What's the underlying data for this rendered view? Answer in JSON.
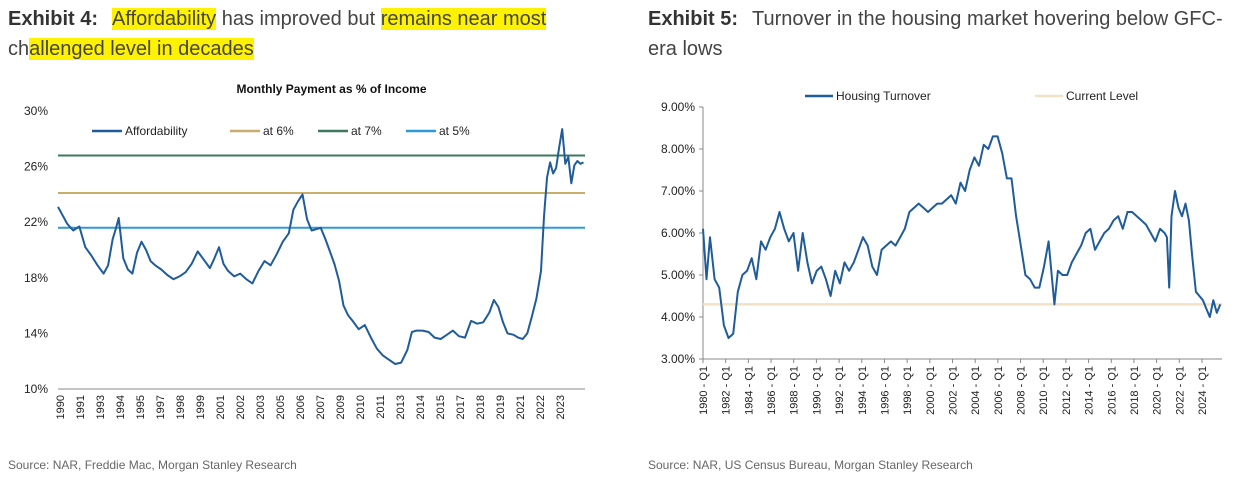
{
  "exhibit4": {
    "label": "Exhibit 4:",
    "title_parts": [
      {
        "text": "Affordability",
        "hl": true
      },
      {
        "text": " has improved but ",
        "hl": false
      },
      {
        "text": "remains near most",
        "hl": true
      },
      {
        "text": " ch",
        "hl": false
      },
      {
        "text": "allenged level in decades",
        "hl": true
      }
    ],
    "source": "Source: NAR, Freddie Mac, Morgan Stanley Research"
  },
  "exhibit5": {
    "label": "Exhibit 5:",
    "title": "Turnover in the housing market hovering below GFC-era lows",
    "source": "Source: NAR, US Census Bureau, Morgan Stanley Research"
  },
  "chart_data": [
    {
      "type": "line",
      "title": "Monthly Payment as % of Income",
      "xlabel": "",
      "ylabel": "",
      "xlim": [
        1990,
        2024.7
      ],
      "ylim": [
        10,
        30
      ],
      "y_ticks": [
        "10%",
        "14%",
        "18%",
        "22%",
        "26%",
        "30%"
      ],
      "x_ticks": [
        "1990",
        "1991",
        "1993",
        "1994",
        "1995",
        "1997",
        "1998",
        "1999",
        "2001",
        "2002",
        "2003",
        "2005",
        "2006",
        "2007",
        "2009",
        "2010",
        "2011",
        "2013",
        "2014",
        "2015",
        "2017",
        "2018",
        "2019",
        "2021",
        "2022",
        "2023"
      ],
      "legend_position": "top",
      "grid": false,
      "colors": {
        "Affordability": "#1f5c99",
        "at 6%": "#c8ad6b",
        "at 7%": "#3d7a5c",
        "at 5%": "#2e9ad6"
      },
      "series": [
        {
          "name": "Affordability",
          "x": [
            1990,
            1990.3,
            1990.6,
            1991,
            1991.4,
            1991.8,
            1992.2,
            1992.6,
            1993,
            1993.3,
            1993.6,
            1993.8,
            1994,
            1994.3,
            1994.6,
            1994.9,
            1995.2,
            1995.5,
            1995.8,
            1996.1,
            1996.4,
            1996.8,
            1997.2,
            1997.6,
            1998,
            1998.4,
            1998.8,
            1999.2,
            1999.6,
            2000,
            2000.3,
            2000.6,
            2000.9,
            2001.2,
            2001.6,
            2002,
            2002.4,
            2002.8,
            2003.2,
            2003.6,
            2004,
            2004.4,
            2004.8,
            2005.2,
            2005.5,
            2005.8,
            2006.1,
            2006.4,
            2006.7,
            2007,
            2007.3,
            2007.6,
            2007.9,
            2008.2,
            2008.5,
            2008.8,
            2009.1,
            2009.4,
            2009.8,
            2010.2,
            2010.6,
            2011,
            2011.4,
            2011.8,
            2012.2,
            2012.6,
            2013,
            2013.3,
            2013.6,
            2014,
            2014.4,
            2014.8,
            2015.2,
            2015.6,
            2016,
            2016.4,
            2016.8,
            2017.2,
            2017.6,
            2018,
            2018.4,
            2018.7,
            2019,
            2019.3,
            2019.6,
            2020,
            2020.3,
            2020.6,
            2020.9,
            2021.2,
            2021.5,
            2021.8,
            2022,
            2022.2,
            2022.4,
            2022.6,
            2022.8,
            2023,
            2023.2,
            2023.4,
            2023.6,
            2023.8,
            2024,
            2024.2,
            2024.4,
            2024.6
          ],
          "y": [
            23.1,
            22.5,
            21.9,
            21.4,
            21.7,
            20.2,
            19.6,
            18.9,
            18.3,
            18.9,
            20.8,
            21.5,
            22.3,
            19.4,
            18.6,
            18.3,
            19.8,
            20.6,
            20.0,
            19.2,
            18.9,
            18.6,
            18.2,
            17.9,
            18.1,
            18.4,
            19.0,
            19.9,
            19.3,
            18.7,
            19.4,
            20.2,
            19.0,
            18.5,
            18.1,
            18.3,
            17.9,
            17.6,
            18.5,
            19.2,
            18.9,
            19.7,
            20.6,
            21.2,
            22.9,
            23.5,
            24.0,
            22.2,
            21.4,
            21.5,
            21.6,
            20.8,
            19.9,
            19.0,
            17.8,
            16.0,
            15.3,
            14.9,
            14.3,
            14.6,
            13.7,
            12.9,
            12.4,
            12.1,
            11.8,
            11.9,
            12.8,
            14.1,
            14.2,
            14.2,
            14.1,
            13.7,
            13.6,
            13.9,
            14.2,
            13.8,
            13.7,
            14.9,
            14.7,
            14.8,
            15.5,
            16.4,
            15.9,
            14.8,
            14.0,
            13.9,
            13.7,
            13.6,
            14.0,
            15.2,
            16.5,
            18.5,
            22.4,
            25.2,
            26.3,
            25.5,
            25.9,
            27.4,
            28.7,
            26.2,
            26.7,
            24.8,
            26.1,
            26.4,
            26.2,
            26.3
          ]
        },
        {
          "name": "at 6%",
          "x": [
            1990,
            2024.7
          ],
          "y": [
            24.1,
            24.1
          ]
        },
        {
          "name": "at 7%",
          "x": [
            1990,
            2024.7
          ],
          "y": [
            26.8,
            26.8
          ]
        },
        {
          "name": "at 5%",
          "x": [
            1990,
            2024.7
          ],
          "y": [
            21.6,
            21.6
          ]
        }
      ]
    },
    {
      "type": "line",
      "title": "",
      "xlabel": "",
      "ylabel": "",
      "xlim": [
        1980,
        2024.75
      ],
      "ylim": [
        3,
        9
      ],
      "y_ticks": [
        "3.00%",
        "4.00%",
        "5.00%",
        "6.00%",
        "7.00%",
        "8.00%",
        "9.00%"
      ],
      "x_ticks": [
        "1980 - Q1",
        "1982 - Q1",
        "1984 - Q1",
        "1986 - Q1",
        "1988 - Q1",
        "1990 - Q1",
        "1992 - Q1",
        "1994 - Q1",
        "1996 - Q1",
        "1998 - Q1",
        "2000 - Q1",
        "2002 - Q1",
        "2004 - Q1",
        "2006 - Q1",
        "2008 - Q1",
        "2010 - Q1",
        "2012 - Q1",
        "2014 - Q1",
        "2016 - Q1",
        "2018 - Q1",
        "2020 - Q1",
        "2022 - Q1",
        "2024 - Q1"
      ],
      "legend_position": "top",
      "grid": false,
      "colors": {
        "Housing Turnover": "#1f5c99",
        "Current Level": "#efe3c4"
      },
      "series": [
        {
          "name": "Housing Turnover",
          "x": [
            1980,
            1980.3,
            1980.6,
            1981,
            1981.4,
            1981.8,
            1982.2,
            1982.6,
            1983,
            1983.4,
            1983.8,
            1984.2,
            1984.6,
            1985,
            1985.4,
            1985.8,
            1986.2,
            1986.6,
            1987,
            1987.4,
            1987.8,
            1988.2,
            1988.6,
            1989,
            1989.4,
            1989.8,
            1990.2,
            1990.6,
            1991,
            1991.4,
            1991.8,
            1992.2,
            1992.6,
            1993,
            1993.4,
            1993.8,
            1994.2,
            1994.6,
            1995,
            1995.4,
            1995.8,
            1996.2,
            1996.6,
            1997,
            1997.4,
            1997.8,
            1998.2,
            1998.6,
            1999,
            1999.4,
            1999.8,
            2000.2,
            2000.6,
            2001,
            2001.4,
            2001.8,
            2002.2,
            2002.6,
            2003,
            2003.4,
            2003.8,
            2004.2,
            2004.6,
            2005,
            2005.4,
            2005.8,
            2006.2,
            2006.6,
            2007,
            2007.4,
            2007.8,
            2008.2,
            2008.6,
            2009,
            2009.4,
            2009.8,
            2010,
            2010.3,
            2010.6,
            2011,
            2011.4,
            2011.8,
            2012.2,
            2012.6,
            2013,
            2013.4,
            2013.8,
            2014.2,
            2014.6,
            2015,
            2015.4,
            2015.8,
            2016.2,
            2016.6,
            2017,
            2017.4,
            2017.8,
            2018.2,
            2018.6,
            2019,
            2019.4,
            2019.8,
            2020,
            2020.2,
            2020.4,
            2020.7,
            2021,
            2021.3,
            2021.6,
            2021.9,
            2022.2,
            2022.5,
            2022.8,
            2023.1,
            2023.4,
            2023.7,
            2024,
            2024.3,
            2024.6
          ],
          "y": [
            6.1,
            4.9,
            5.9,
            4.9,
            4.7,
            3.8,
            3.5,
            3.6,
            4.6,
            5.0,
            5.1,
            5.4,
            4.9,
            5.8,
            5.6,
            5.9,
            6.1,
            6.5,
            6.1,
            5.8,
            6.0,
            5.1,
            6.0,
            5.3,
            4.8,
            5.1,
            5.2,
            4.9,
            4.5,
            5.1,
            4.8,
            5.3,
            5.1,
            5.3,
            5.6,
            5.9,
            5.7,
            5.2,
            5.0,
            5.6,
            5.7,
            5.8,
            5.7,
            5.9,
            6.1,
            6.5,
            6.6,
            6.7,
            6.6,
            6.5,
            6.6,
            6.7,
            6.7,
            6.8,
            6.9,
            6.7,
            7.2,
            7.0,
            7.5,
            7.8,
            7.6,
            8.1,
            8.0,
            8.3,
            8.3,
            7.9,
            7.3,
            7.3,
            6.4,
            5.7,
            5.0,
            4.9,
            4.7,
            4.7,
            5.2,
            5.8,
            5.2,
            4.3,
            5.1,
            5.0,
            5.0,
            5.3,
            5.5,
            5.7,
            6.0,
            6.1,
            5.6,
            5.8,
            6.0,
            6.1,
            6.3,
            6.4,
            6.1,
            6.5,
            6.5,
            6.4,
            6.3,
            6.2,
            6.0,
            5.8,
            6.1,
            6.0,
            5.9,
            4.7,
            6.4,
            7.0,
            6.6,
            6.4,
            6.7,
            6.3,
            5.4,
            4.6,
            4.5,
            4.4,
            4.2,
            4.0,
            4.4,
            4.1,
            4.3
          ]
        },
        {
          "name": "Current Level",
          "x": [
            1980,
            2024.75
          ],
          "y": [
            4.3,
            4.3
          ]
        }
      ]
    }
  ]
}
